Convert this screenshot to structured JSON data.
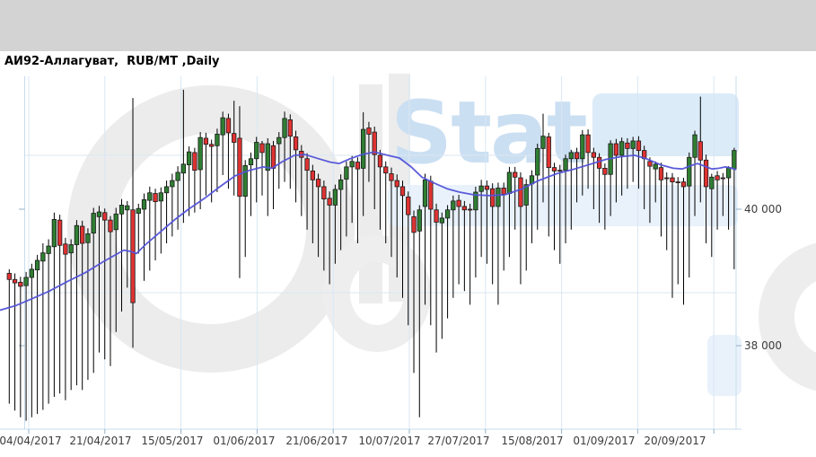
{
  "window": {
    "topbar_color": "#d3d3d3"
  },
  "header": {
    "title": "АИ92-Аллагуват,  RUB/MT ,Daily"
  },
  "watermark": {
    "word_gray": "Oil",
    "word_blue": "Stat",
    "gray": "#ececec",
    "blue_text": "#cbdff2",
    "panel_blue": "#dcebf8",
    "band_blue": "#e9f2fb"
  },
  "chart_data": {
    "type": "candlestick",
    "title": "АИ92-Аллагуват, RUB/MT, Daily",
    "instrument": "АИ92-Аллагуват",
    "unit": "RUB/MT",
    "timeframe": "Daily",
    "legend_position": "none",
    "grid": true,
    "ylim": [
      36700,
      41950
    ],
    "y_axis": {
      "side": "right",
      "ticks": [
        {
          "label": "40 000",
          "value": 40000
        },
        {
          "label": "38 000",
          "value": 38000
        }
      ]
    },
    "x_tick_labels": [
      "04/04/2017",
      "21/04/2017",
      "15/05/2017",
      "01/06/2017",
      "21/06/2017",
      "10/07/2017",
      "27/07/2017",
      "15/08/2017",
      "01/09/2017",
      "20/09/2017"
    ],
    "colors": {
      "up": "#2f7e32",
      "down": "#e03232",
      "wick": "#000000",
      "ma_line": "#5353d9",
      "grid": "#d9e7f3",
      "border": "#c7dcee",
      "tick": "#93b0c8",
      "axis_text": "#3c3c3c"
    },
    "series_note": "ohlc = [open, high, low, close] in RUB/MT, daily candles",
    "candles_ohlc": [
      [
        39060,
        39120,
        37150,
        38970
      ],
      [
        38970,
        39060,
        37050,
        38920
      ],
      [
        38930,
        39010,
        36950,
        38870
      ],
      [
        38880,
        39080,
        36900,
        39000
      ],
      [
        39000,
        39200,
        36950,
        39120
      ],
      [
        39110,
        39330,
        37000,
        39250
      ],
      [
        39240,
        39500,
        37060,
        39360
      ],
      [
        39350,
        39560,
        37150,
        39460
      ],
      [
        39450,
        39950,
        37250,
        39850
      ],
      [
        39840,
        39920,
        37300,
        39470
      ],
      [
        39490,
        39580,
        37200,
        39340
      ],
      [
        39360,
        39560,
        37350,
        39480
      ],
      [
        39480,
        39840,
        37420,
        39760
      ],
      [
        39750,
        39830,
        37350,
        39500
      ],
      [
        39510,
        39720,
        37500,
        39640
      ],
      [
        39650,
        40020,
        37600,
        39940
      ],
      [
        39890,
        40050,
        37900,
        39960
      ],
      [
        39950,
        40010,
        37800,
        39840
      ],
      [
        39840,
        39900,
        37700,
        39670
      ],
      [
        39700,
        40020,
        38200,
        39930
      ],
      [
        39930,
        40150,
        38500,
        40060
      ],
      [
        39990,
        40120,
        38850,
        40050
      ],
      [
        39990,
        41630,
        37970,
        38630
      ],
      [
        39940,
        40080,
        39350,
        40010
      ],
      [
        40000,
        40230,
        38950,
        40140
      ],
      [
        40130,
        40330,
        39100,
        40240
      ],
      [
        40230,
        40300,
        39250,
        40110
      ],
      [
        40120,
        40320,
        39350,
        40240
      ],
      [
        40240,
        40420,
        39500,
        40330
      ],
      [
        40330,
        40520,
        39600,
        40420
      ],
      [
        40420,
        40630,
        39700,
        40540
      ],
      [
        40530,
        41750,
        39800,
        40660
      ],
      [
        40650,
        40920,
        39900,
        40840
      ],
      [
        40830,
        40900,
        39950,
        40570
      ],
      [
        40580,
        41130,
        40000,
        41050
      ],
      [
        41040,
        41120,
        40200,
        40950
      ],
      [
        40950,
        41020,
        40100,
        40920
      ],
      [
        40930,
        41180,
        40250,
        41100
      ],
      [
        41090,
        41430,
        40500,
        41340
      ],
      [
        41330,
        41400,
        40300,
        41120
      ],
      [
        41110,
        41590,
        40200,
        40980
      ],
      [
        41040,
        41510,
        38990,
        40190
      ],
      [
        40190,
        40720,
        39300,
        40640
      ],
      [
        40650,
        40830,
        39900,
        40740
      ],
      [
        40740,
        41060,
        40100,
        40980
      ],
      [
        40960,
        41000,
        40200,
        40830
      ],
      [
        40570,
        41040,
        39900,
        40960
      ],
      [
        40930,
        41000,
        40000,
        40600
      ],
      [
        40960,
        41130,
        40300,
        41050
      ],
      [
        41050,
        41430,
        40400,
        41330
      ],
      [
        41310,
        41390,
        40300,
        41070
      ],
      [
        41060,
        41150,
        40100,
        40870
      ],
      [
        40850,
        40940,
        39900,
        40760
      ],
      [
        40740,
        40820,
        39700,
        40570
      ],
      [
        40560,
        40650,
        39500,
        40430
      ],
      [
        40440,
        40520,
        39300,
        40330
      ],
      [
        40330,
        40420,
        39100,
        40150
      ],
      [
        40160,
        40260,
        38900,
        40060
      ],
      [
        40060,
        40360,
        39200,
        40290
      ],
      [
        40290,
        40510,
        39400,
        40430
      ],
      [
        40440,
        40700,
        39600,
        40620
      ],
      [
        40620,
        40780,
        39800,
        40700
      ],
      [
        40690,
        40760,
        39500,
        40590
      ],
      [
        40600,
        41420,
        39900,
        41170
      ],
      [
        41190,
        41280,
        40400,
        41100
      ],
      [
        41130,
        41210,
        40000,
        40800
      ],
      [
        40790,
        40870,
        39700,
        40620
      ],
      [
        40620,
        40700,
        39500,
        40530
      ],
      [
        40520,
        40610,
        39300,
        40420
      ],
      [
        40420,
        40510,
        39000,
        40330
      ],
      [
        40330,
        40420,
        38700,
        40200
      ],
      [
        40180,
        40260,
        38300,
        39920
      ],
      [
        39890,
        39980,
        37600,
        39660
      ],
      [
        39680,
        40060,
        36950,
        39990
      ],
      [
        40040,
        40520,
        38600,
        40430
      ],
      [
        40410,
        40490,
        38300,
        40000
      ],
      [
        39990,
        40080,
        37900,
        39810
      ],
      [
        39800,
        39950,
        38100,
        39870
      ],
      [
        39870,
        40060,
        38400,
        39990
      ],
      [
        39990,
        40200,
        38700,
        40120
      ],
      [
        40130,
        40210,
        38900,
        40040
      ],
      [
        40040,
        40120,
        38800,
        39990
      ],
      [
        40000,
        40080,
        38600,
        39990
      ],
      [
        39990,
        40330,
        39000,
        40250
      ],
      [
        40260,
        40430,
        39300,
        40340
      ],
      [
        40340,
        40420,
        39200,
        40290
      ],
      [
        40300,
        40380,
        38900,
        40040
      ],
      [
        40040,
        40390,
        38600,
        40310
      ],
      [
        40310,
        40390,
        39100,
        40220
      ],
      [
        40230,
        40620,
        39300,
        40540
      ],
      [
        40540,
        40620,
        39700,
        40470
      ],
      [
        40460,
        40540,
        38900,
        40040
      ],
      [
        40060,
        40440,
        39100,
        40360
      ],
      [
        40370,
        40570,
        39500,
        40490
      ],
      [
        40500,
        40960,
        39700,
        40890
      ],
      [
        40890,
        41400,
        40100,
        41070
      ],
      [
        41060,
        41120,
        39600,
        40610
      ],
      [
        40610,
        40680,
        39400,
        40560
      ],
      [
        40570,
        40650,
        39200,
        40560
      ],
      [
        40570,
        40800,
        39500,
        40740
      ],
      [
        40740,
        40870,
        39700,
        40830
      ],
      [
        40830,
        40900,
        40100,
        40740
      ],
      [
        40740,
        41160,
        40200,
        41090
      ],
      [
        41090,
        41170,
        40300,
        40830
      ],
      [
        40830,
        40900,
        40000,
        40760
      ],
      [
        40760,
        40820,
        39800,
        40600
      ],
      [
        40600,
        40670,
        39700,
        40510
      ],
      [
        40510,
        41010,
        39900,
        40960
      ],
      [
        40960,
        41030,
        40100,
        40790
      ],
      [
        40790,
        41050,
        40200,
        40990
      ],
      [
        40970,
        41040,
        40300,
        40890
      ],
      [
        40890,
        41060,
        40400,
        41000
      ],
      [
        41000,
        41070,
        40300,
        40860
      ],
      [
        40860,
        40930,
        40000,
        40740
      ],
      [
        40700,
        40760,
        39800,
        40630
      ],
      [
        40590,
        40700,
        40100,
        40660
      ],
      [
        40610,
        40680,
        39600,
        40430
      ],
      [
        40460,
        40540,
        39400,
        40450
      ],
      [
        40460,
        40530,
        38700,
        40400
      ],
      [
        40400,
        40470,
        38900,
        40390
      ],
      [
        40400,
        40460,
        38600,
        40330
      ],
      [
        40340,
        40830,
        39000,
        40760
      ],
      [
        40760,
        41150,
        39900,
        41090
      ],
      [
        40990,
        41650,
        40100,
        40720
      ],
      [
        40720,
        40800,
        39500,
        40330
      ],
      [
        40300,
        40520,
        39300,
        40470
      ],
      [
        40490,
        40560,
        39700,
        40430
      ],
      [
        40460,
        40530,
        39900,
        40450
      ],
      [
        40460,
        40630,
        39700,
        40610
      ],
      [
        40590,
        40900,
        39120,
        40860
      ]
    ],
    "ma_points": [
      [
        0,
        38520
      ],
      [
        18,
        38590
      ],
      [
        36,
        38690
      ],
      [
        55,
        38800
      ],
      [
        75,
        38940
      ],
      [
        95,
        39070
      ],
      [
        115,
        39230
      ],
      [
        138,
        39400
      ],
      [
        146,
        39380
      ],
      [
        152,
        39350
      ],
      [
        162,
        39480
      ],
      [
        178,
        39660
      ],
      [
        195,
        39850
      ],
      [
        210,
        40000
      ],
      [
        228,
        40160
      ],
      [
        245,
        40330
      ],
      [
        262,
        40490
      ],
      [
        278,
        40570
      ],
      [
        293,
        40620
      ],
      [
        303,
        40600
      ],
      [
        315,
        40700
      ],
      [
        328,
        40790
      ],
      [
        340,
        40800
      ],
      [
        355,
        40740
      ],
      [
        368,
        40690
      ],
      [
        378,
        40670
      ],
      [
        390,
        40740
      ],
      [
        403,
        40800
      ],
      [
        417,
        40840
      ],
      [
        432,
        40790
      ],
      [
        445,
        40750
      ],
      [
        458,
        40620
      ],
      [
        470,
        40470
      ],
      [
        484,
        40380
      ],
      [
        498,
        40300
      ],
      [
        512,
        40250
      ],
      [
        528,
        40210
      ],
      [
        545,
        40200
      ],
      [
        562,
        40210
      ],
      [
        580,
        40290
      ],
      [
        600,
        40420
      ],
      [
        620,
        40520
      ],
      [
        640,
        40590
      ],
      [
        658,
        40660
      ],
      [
        675,
        40730
      ],
      [
        692,
        40770
      ],
      [
        707,
        40790
      ],
      [
        720,
        40740
      ],
      [
        736,
        40650
      ],
      [
        750,
        40600
      ],
      [
        760,
        40590
      ],
      [
        770,
        40640
      ],
      [
        777,
        40670
      ],
      [
        785,
        40630
      ],
      [
        793,
        40590
      ],
      [
        801,
        40600
      ],
      [
        808,
        40620
      ],
      [
        815,
        40600
      ],
      [
        820,
        40580
      ]
    ]
  }
}
